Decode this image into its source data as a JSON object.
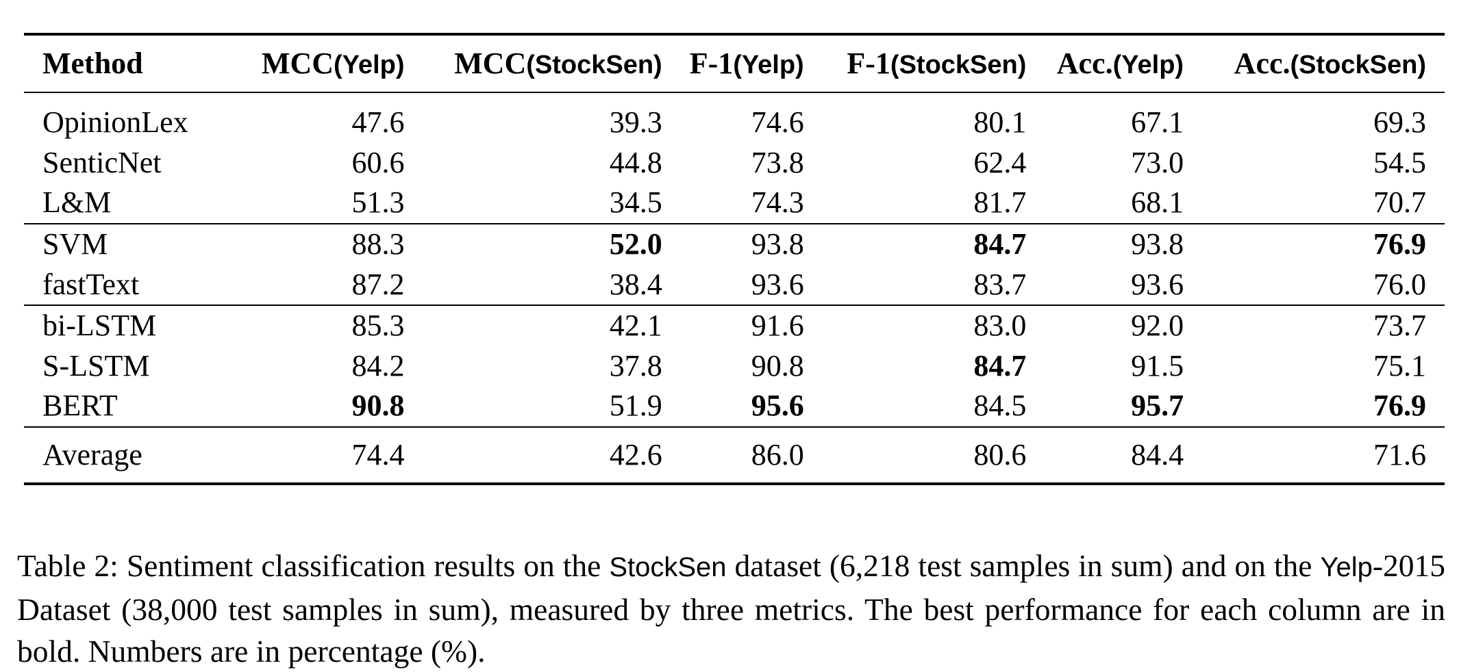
{
  "table": {
    "headers": [
      {
        "main": "Method",
        "sub": ""
      },
      {
        "main": "MCC",
        "sub": "(Yelp)"
      },
      {
        "main": "MCC",
        "sub": "(StockSen)"
      },
      {
        "main": "F-1",
        "sub": "(Yelp)"
      },
      {
        "main": "F-1",
        "sub": "(StockSen)"
      },
      {
        "main": "Acc.",
        "sub": "(Yelp)"
      },
      {
        "main": "Acc.",
        "sub": "(StockSen)"
      }
    ],
    "rows": [
      {
        "group": 1,
        "cells": [
          {
            "v": "OpinionLex"
          },
          {
            "v": "47.6"
          },
          {
            "v": "39.3"
          },
          {
            "v": "74.6"
          },
          {
            "v": "80.1"
          },
          {
            "v": "67.1"
          },
          {
            "v": "69.3"
          }
        ]
      },
      {
        "group": 1,
        "cells": [
          {
            "v": "SenticNet"
          },
          {
            "v": "60.6"
          },
          {
            "v": "44.8"
          },
          {
            "v": "73.8"
          },
          {
            "v": "62.4"
          },
          {
            "v": "73.0"
          },
          {
            "v": "54.5"
          }
        ]
      },
      {
        "group": 1,
        "cells": [
          {
            "v": "L&M"
          },
          {
            "v": "51.3"
          },
          {
            "v": "34.5"
          },
          {
            "v": "74.3"
          },
          {
            "v": "81.7"
          },
          {
            "v": "68.1"
          },
          {
            "v": "70.7"
          }
        ]
      },
      {
        "group": 2,
        "cells": [
          {
            "v": "SVM"
          },
          {
            "v": "88.3"
          },
          {
            "v": "52.0",
            "bold": true
          },
          {
            "v": "93.8"
          },
          {
            "v": "84.7",
            "bold": true
          },
          {
            "v": "93.8"
          },
          {
            "v": "76.9",
            "bold": true
          }
        ]
      },
      {
        "group": 2,
        "cells": [
          {
            "v": "fastText"
          },
          {
            "v": "87.2"
          },
          {
            "v": "38.4"
          },
          {
            "v": "93.6"
          },
          {
            "v": "83.7"
          },
          {
            "v": "93.6"
          },
          {
            "v": "76.0"
          }
        ]
      },
      {
        "group": 3,
        "cells": [
          {
            "v": "bi-LSTM"
          },
          {
            "v": "85.3"
          },
          {
            "v": "42.1"
          },
          {
            "v": "91.6"
          },
          {
            "v": "83.0"
          },
          {
            "v": "92.0"
          },
          {
            "v": "73.7"
          }
        ]
      },
      {
        "group": 3,
        "cells": [
          {
            "v": "S-LSTM"
          },
          {
            "v": "84.2"
          },
          {
            "v": "37.8"
          },
          {
            "v": "90.8"
          },
          {
            "v": "84.7",
            "bold": true
          },
          {
            "v": "91.5"
          },
          {
            "v": "75.1"
          }
        ]
      },
      {
        "group": 3,
        "cells": [
          {
            "v": "BERT"
          },
          {
            "v": "90.8",
            "bold": true
          },
          {
            "v": "51.9"
          },
          {
            "v": "95.6",
            "bold": true
          },
          {
            "v": "84.5"
          },
          {
            "v": "95.7",
            "bold": true
          },
          {
            "v": "76.9",
            "bold": true
          }
        ]
      }
    ],
    "average": [
      {
        "v": "Average"
      },
      {
        "v": "74.4"
      },
      {
        "v": "42.6"
      },
      {
        "v": "86.0"
      },
      {
        "v": "80.6"
      },
      {
        "v": "84.4"
      },
      {
        "v": "71.6"
      }
    ]
  },
  "caption": {
    "part1": "Table 2: Sentiment classification results on the ",
    "dataset1": "StockSen",
    "part2": " dataset (6,218 test samples in sum) and on the ",
    "dataset2": "Yelp",
    "part3": "-2015 Dataset (38,000 test samples in sum), measured by three metrics. The best performance for each column are in bold. Numbers are in percentage (%)."
  }
}
